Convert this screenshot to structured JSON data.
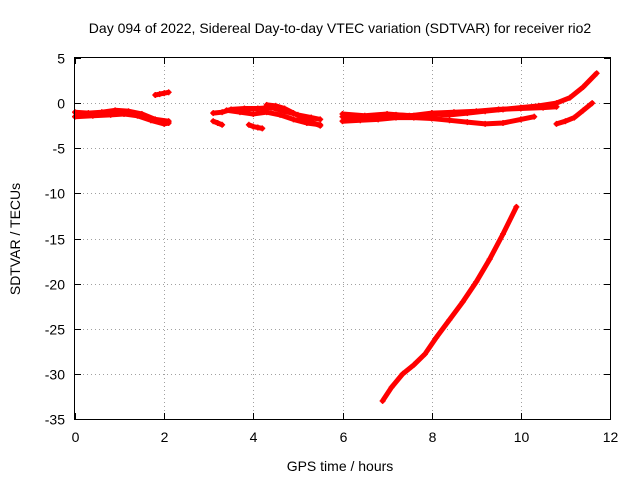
{
  "chart_data": {
    "type": "scatter",
    "title": "Day 094 of 2022, Sidereal Day-to-day VTEC variation (SDTVAR) for receiver rio2",
    "xlabel": "GPS time / hours",
    "ylabel": "SDTVAR / TECUs",
    "xlim": [
      0,
      12
    ],
    "ylim": [
      -35,
      5
    ],
    "xticks": [
      0,
      2,
      4,
      6,
      8,
      10,
      12
    ],
    "yticks": [
      5,
      0,
      -5,
      -10,
      -15,
      -20,
      -25,
      -30,
      -35
    ],
    "grid": true,
    "marker_color": "#ff0000",
    "series": [
      {
        "x": [
          0.0,
          0.3,
          0.6,
          0.9,
          1.2,
          1.5,
          1.8,
          2.1
        ],
        "y": [
          -1.0,
          -1.1,
          -1.0,
          -0.8,
          -0.9,
          -1.2,
          -1.8,
          -2.0
        ]
      },
      {
        "x": [
          0.0,
          0.4,
          0.8,
          1.1,
          1.4,
          1.7,
          2.0,
          2.1
        ],
        "y": [
          -1.5,
          -1.4,
          -1.3,
          -1.2,
          -1.4,
          -1.9,
          -2.3,
          -2.2
        ]
      },
      {
        "x": [
          1.8,
          1.9,
          2.0,
          2.1
        ],
        "y": [
          0.9,
          1.0,
          1.1,
          1.2
        ]
      },
      {
        "x": [
          3.1,
          3.2,
          3.3
        ],
        "y": [
          -2.0,
          -2.2,
          -2.4
        ]
      },
      {
        "x": [
          3.1,
          3.3,
          3.5,
          3.8,
          4.1,
          4.4,
          4.7,
          5.0,
          5.3,
          5.5
        ],
        "y": [
          -1.1,
          -1.0,
          -0.7,
          -0.6,
          -0.6,
          -0.5,
          -0.9,
          -1.3,
          -1.6,
          -1.8
        ]
      },
      {
        "x": [
          3.4,
          3.7,
          4.0,
          4.3,
          4.6,
          4.9,
          5.2,
          5.5
        ],
        "y": [
          -0.8,
          -1.0,
          -1.2,
          -1.0,
          -1.3,
          -1.8,
          -2.2,
          -2.4
        ]
      },
      {
        "x": [
          3.9,
          4.0,
          4.1,
          4.2
        ],
        "y": [
          -2.4,
          -2.6,
          -2.7,
          -2.8
        ]
      },
      {
        "x": [
          4.3,
          4.5,
          4.7,
          4.9,
          5.1,
          5.3,
          5.5
        ],
        "y": [
          -0.2,
          -0.3,
          -0.6,
          -1.1,
          -1.6,
          -2.1,
          -2.5
        ]
      },
      {
        "x": [
          6.0,
          6.4,
          6.8,
          7.2,
          7.6,
          8.0,
          8.4,
          8.8,
          9.2,
          9.6,
          10.0,
          10.4,
          10.8,
          11.1,
          11.4,
          11.7
        ],
        "y": [
          -1.5,
          -1.6,
          -1.5,
          -1.3,
          -1.4,
          -1.2,
          -1.3,
          -1.1,
          -0.9,
          -0.7,
          -0.5,
          -0.3,
          0.0,
          0.6,
          1.8,
          3.3
        ]
      },
      {
        "x": [
          6.0,
          6.4,
          6.8,
          7.2,
          7.6,
          8.0,
          8.4,
          8.8,
          9.2,
          9.6,
          10.0,
          10.3
        ],
        "y": [
          -2.0,
          -1.9,
          -1.8,
          -1.6,
          -1.6,
          -1.7,
          -1.9,
          -2.1,
          -2.3,
          -2.2,
          -1.8,
          -1.5
        ]
      },
      {
        "x": [
          6.0,
          6.5,
          7.0,
          7.5,
          8.0,
          8.5,
          9.0,
          9.5,
          10.0,
          10.5,
          10.8
        ],
        "y": [
          -1.2,
          -1.4,
          -1.2,
          -1.4,
          -1.1,
          -1.0,
          -0.9,
          -0.7,
          -0.6,
          -0.5,
          -0.4
        ]
      },
      {
        "x": [
          10.8,
          11.0,
          11.2,
          11.4,
          11.6
        ],
        "y": [
          -2.3,
          -2.0,
          -1.6,
          -0.8,
          0.0
        ]
      },
      {
        "x": [
          6.9,
          7.1,
          7.35,
          7.6,
          7.85,
          8.1,
          8.4,
          8.7,
          9.0,
          9.3,
          9.6,
          9.9
        ],
        "y": [
          -33.0,
          -31.5,
          -30.0,
          -29.0,
          -27.8,
          -26.0,
          -24.0,
          -22.0,
          -19.8,
          -17.3,
          -14.5,
          -11.5
        ]
      }
    ]
  }
}
